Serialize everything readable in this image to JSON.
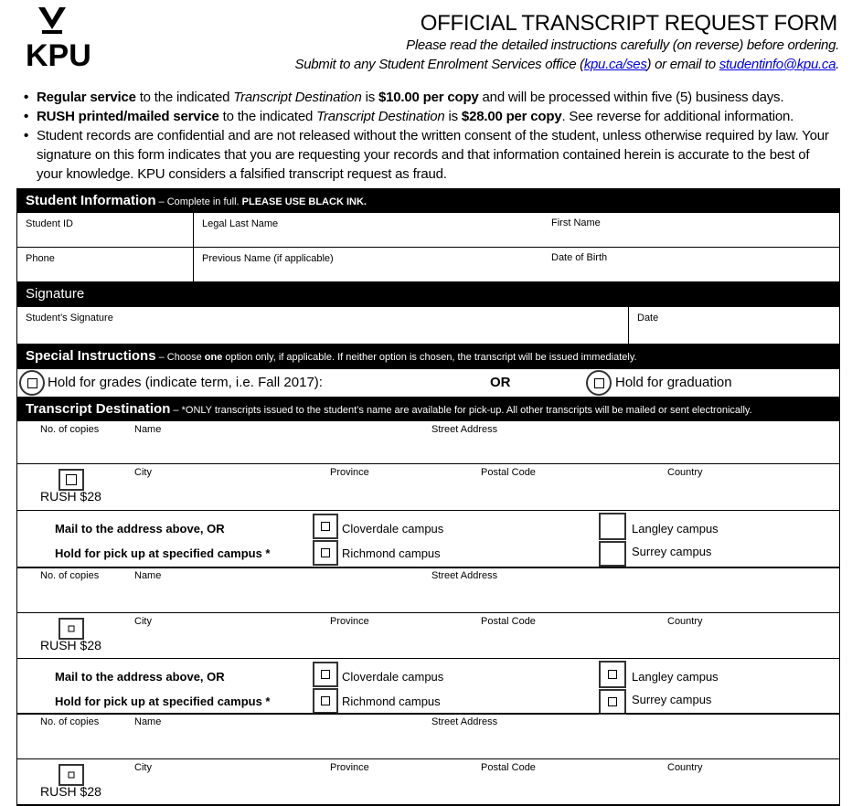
{
  "header": {
    "logo_text": "KPU",
    "title": "OFFICIAL TRANSCRIPT REQUEST FORM",
    "subtitle": "Please read the detailed instructions carefully (on reverse) before ordering.",
    "submit_prefix": "Submit to any Student Enrolment Services office (",
    "submit_link": "kpu.ca/ses",
    "submit_mid": ") or email to ",
    "email_link": "studentinfo@kpu.ca",
    "submit_end": "."
  },
  "bullets": [
    {
      "b1": "Regular service",
      "t1": " to the indicated ",
      "i1": "Transcript Destination",
      "t2": " is ",
      "b2": "$10.00 per copy",
      "t3": " and will be processed within five (5) business days."
    },
    {
      "b1": "RUSH printed/mailed service",
      "t1": " to the indicated ",
      "i1": "Transcript Destination",
      "t2": " is ",
      "b2": "$28.00 per copy",
      "t3": ". See reverse for additional information."
    },
    {
      "text": "Student records are confidential and are not released without the written consent of the student, unless otherwise required by law. Your signature on this form indicates that you are requesting your records and that information contained herein is accurate to the best of your knowledge. KPU considers a falsified transcript request as fraud."
    }
  ],
  "student_info": {
    "heading": "Student Information",
    "note": " – Complete in full. ",
    "note_bold": "PLEASE USE BLACK INK.",
    "fields": [
      "Student ID",
      "Legal Last Name",
      "First Name",
      "Phone",
      "Previous Name (if applicable)",
      "Date of Birth"
    ]
  },
  "signature": {
    "heading": "Signature",
    "sig_label": "Student’s Signature",
    "date_label": "Date"
  },
  "special": {
    "heading": "Special Instructions",
    "note_a": " – Choose ",
    "note_b": "one",
    "note_c": " option only, if applicable. If neither option is chosen, the transcript will be issued immediately.",
    "opt1": "Hold for grades (indicate term, i.e. Fall 2017):",
    "or": "OR",
    "opt2": "Hold for graduation"
  },
  "destination": {
    "heading": "Transcript Destination",
    "note": " – *ONLY transcripts issued to the student’s name are available for pick-up. All other transcripts will be mailed or sent electronically.",
    "labels": {
      "copies": "No. of copies",
      "name": "Name",
      "street": "Street Address",
      "city": "City",
      "province": "Province",
      "postal": "Postal Code",
      "country": "Country",
      "rush": "RUSH $28",
      "mail": "Mail to the address above, OR",
      "pickup": "Hold for pick up at specified campus *",
      "cloverdale": "Cloverdale campus",
      "richmond": "Richmond campus",
      "langley": "Langley campus",
      "surrey": "Surrey campus"
    }
  }
}
